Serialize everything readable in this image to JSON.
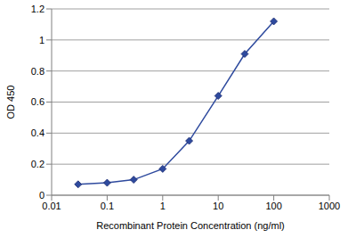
{
  "chart_data": {
    "type": "line",
    "x_label": "Recombinant Protein Concentration (ng/ml)",
    "y_label": "OD 450",
    "x": [
      0.03,
      0.1,
      0.3,
      1,
      3,
      10,
      30,
      100
    ],
    "values": [
      0.07,
      0.08,
      0.1,
      0.17,
      0.35,
      0.64,
      0.91,
      1.12
    ],
    "xlim": [
      0.01,
      1000
    ],
    "xticks": [
      0.01,
      0.1,
      1,
      10,
      100,
      1000
    ],
    "ylim": [
      0,
      1.2
    ],
    "yticks": [
      0,
      0.2,
      0.4,
      0.6,
      0.8,
      1,
      1.2
    ],
    "log": "x",
    "grid": true,
    "color": "#2e4a9e",
    "marker": "diamond"
  }
}
